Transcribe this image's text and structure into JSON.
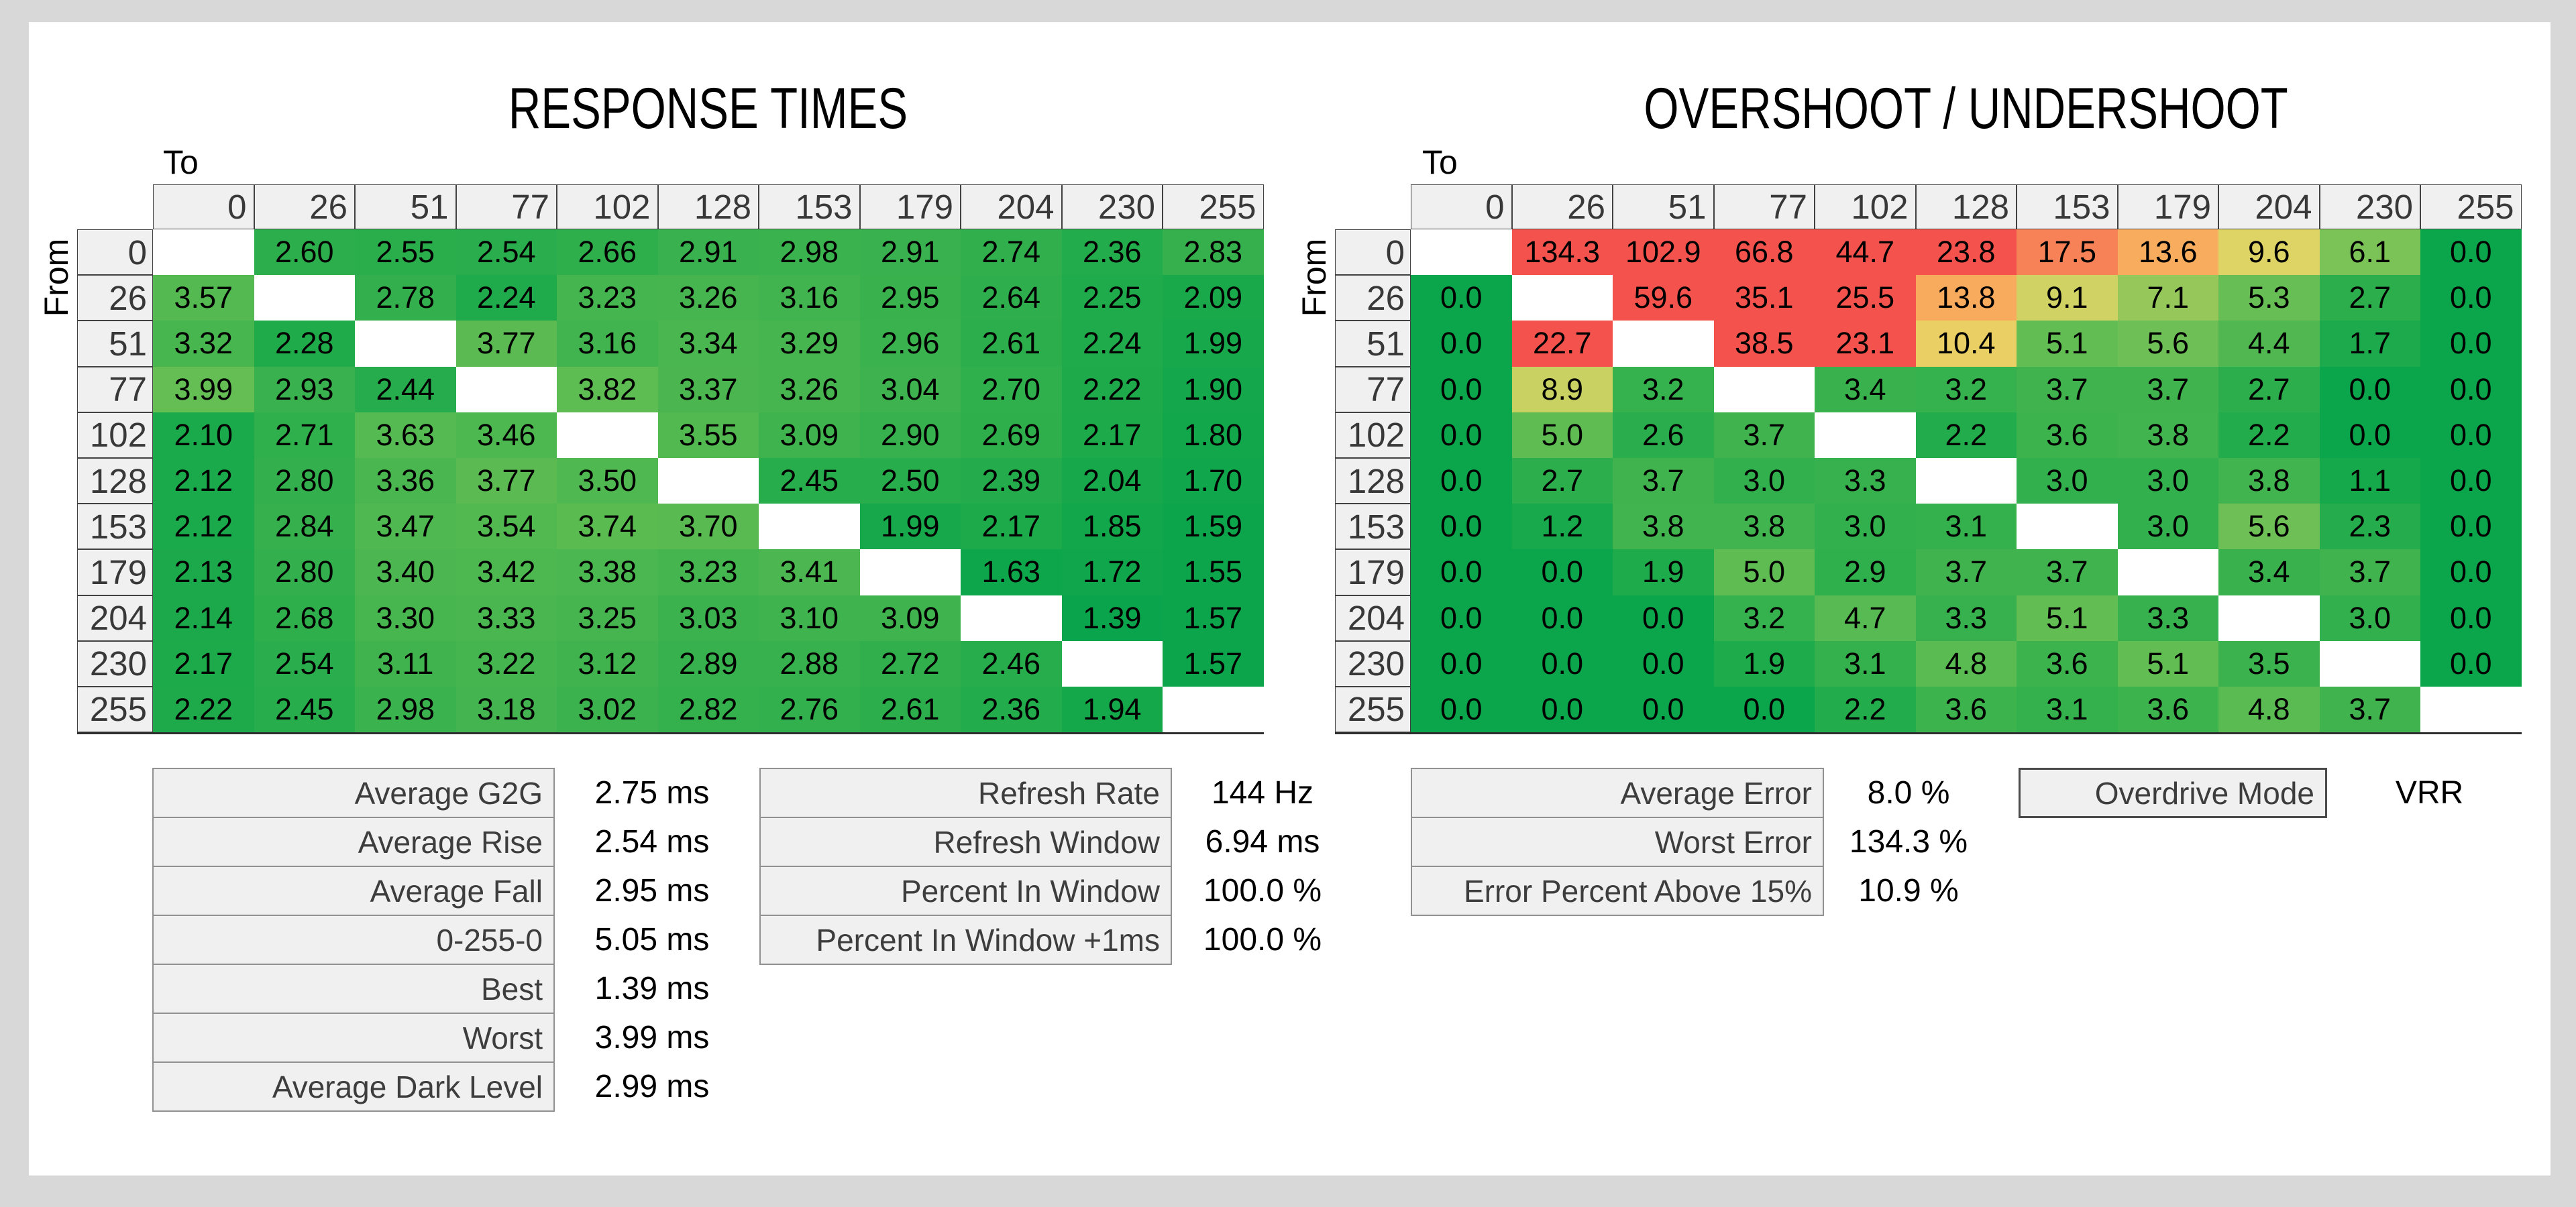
{
  "colors": {
    "page_bg": "#d8d8d8",
    "panel_bg": "#ffffff",
    "header_bg": "#f0f0f0",
    "header_border": "#414141",
    "header_text": "#383838",
    "grid_bottom_border": "#2e2e2e",
    "stat_label_bg": "#f0f0f0",
    "stat_label_border": "#919191",
    "stat_label_text": "#3d3d3d",
    "stat_value_text": "#000000",
    "overdrive_border": "#4a4a4a",
    "diagonal_blank": "#ffffff"
  },
  "chart_data": [
    {
      "type": "heatmap",
      "title": "RESPONSE TIMES",
      "xlabel": "To",
      "ylabel": "From",
      "x_categories": [
        "0",
        "26",
        "51",
        "77",
        "102",
        "128",
        "153",
        "179",
        "204",
        "230",
        "255"
      ],
      "y_categories": [
        "0",
        "26",
        "51",
        "77",
        "102",
        "128",
        "153",
        "179",
        "204",
        "230",
        "255"
      ],
      "unit": "ms",
      "decimals": 2,
      "color_stops": [
        [
          1.39,
          "#09A44B"
        ],
        [
          2.0,
          "#16A84B"
        ],
        [
          2.6,
          "#2CAE4C"
        ],
        [
          3.0,
          "#3BB24E"
        ],
        [
          3.5,
          "#50B850"
        ],
        [
          4.0,
          "#64BE53"
        ]
      ],
      "values": [
        [
          null,
          2.6,
          2.55,
          2.54,
          2.66,
          2.91,
          2.98,
          2.91,
          2.74,
          2.36,
          2.83
        ],
        [
          3.57,
          null,
          2.78,
          2.24,
          3.23,
          3.26,
          3.16,
          2.95,
          2.64,
          2.25,
          2.09
        ],
        [
          3.32,
          2.28,
          null,
          3.77,
          3.16,
          3.34,
          3.29,
          2.96,
          2.61,
          2.24,
          1.99
        ],
        [
          3.99,
          2.93,
          2.44,
          null,
          3.82,
          3.37,
          3.26,
          3.04,
          2.7,
          2.22,
          1.9
        ],
        [
          2.1,
          2.71,
          3.63,
          3.46,
          null,
          3.55,
          3.09,
          2.9,
          2.69,
          2.17,
          1.8
        ],
        [
          2.12,
          2.8,
          3.36,
          3.77,
          3.5,
          null,
          2.45,
          2.5,
          2.39,
          2.04,
          1.7
        ],
        [
          2.12,
          2.84,
          3.47,
          3.54,
          3.74,
          3.7,
          null,
          1.99,
          2.17,
          1.85,
          1.59
        ],
        [
          2.13,
          2.8,
          3.4,
          3.42,
          3.38,
          3.23,
          3.41,
          null,
          1.63,
          1.72,
          1.55
        ],
        [
          2.14,
          2.68,
          3.3,
          3.33,
          3.25,
          3.03,
          3.1,
          3.09,
          null,
          1.39,
          1.57
        ],
        [
          2.17,
          2.54,
          3.11,
          3.22,
          3.12,
          2.89,
          2.88,
          2.72,
          2.46,
          null,
          1.57
        ],
        [
          2.22,
          2.45,
          2.98,
          3.18,
          3.02,
          2.82,
          2.76,
          2.61,
          2.36,
          1.94,
          null
        ]
      ]
    },
    {
      "type": "heatmap",
      "title": "OVERSHOOT / UNDERSHOOT",
      "xlabel": "To",
      "ylabel": "From",
      "x_categories": [
        "0",
        "26",
        "51",
        "77",
        "102",
        "128",
        "153",
        "179",
        "204",
        "230",
        "255"
      ],
      "y_categories": [
        "0",
        "26",
        "51",
        "77",
        "102",
        "128",
        "153",
        "179",
        "204",
        "230",
        "255"
      ],
      "unit": "%",
      "decimals": 1,
      "color_stops": [
        [
          0.0,
          "#0BA64B"
        ],
        [
          2.0,
          "#1FAB4C"
        ],
        [
          3.5,
          "#3BB24E"
        ],
        [
          5.0,
          "#5FBC53"
        ],
        [
          6.5,
          "#85C458"
        ],
        [
          8.0,
          "#AECC5F"
        ],
        [
          9.5,
          "#DDD466"
        ],
        [
          11.0,
          "#F3CE63"
        ],
        [
          14.0,
          "#F9A85D"
        ],
        [
          18.0,
          "#F77C56"
        ],
        [
          22.0,
          "#F4524D"
        ]
      ],
      "values": [
        [
          null,
          134.3,
          102.9,
          66.8,
          44.7,
          23.8,
          17.5,
          13.6,
          9.6,
          6.1,
          0.0
        ],
        [
          0.0,
          null,
          59.6,
          35.1,
          25.5,
          13.8,
          9.1,
          7.1,
          5.3,
          2.7,
          0.0
        ],
        [
          0.0,
          22.7,
          null,
          38.5,
          23.1,
          10.4,
          5.1,
          5.6,
          4.4,
          1.7,
          0.0
        ],
        [
          0.0,
          8.9,
          3.2,
          null,
          3.4,
          3.2,
          3.7,
          3.7,
          2.7,
          0.0,
          0.0
        ],
        [
          0.0,
          5.0,
          2.6,
          3.7,
          null,
          2.2,
          3.6,
          3.8,
          2.2,
          0.0,
          0.0
        ],
        [
          0.0,
          2.7,
          3.7,
          3.0,
          3.3,
          null,
          3.0,
          3.0,
          3.8,
          1.1,
          0.0
        ],
        [
          0.0,
          1.2,
          3.8,
          3.8,
          3.0,
          3.1,
          null,
          3.0,
          5.6,
          2.3,
          0.0
        ],
        [
          0.0,
          0.0,
          1.9,
          5.0,
          2.9,
          3.7,
          3.7,
          null,
          3.4,
          3.7,
          0.0
        ],
        [
          0.0,
          0.0,
          0.0,
          3.2,
          4.7,
          3.3,
          5.1,
          3.3,
          null,
          3.0,
          0.0
        ],
        [
          0.0,
          0.0,
          0.0,
          1.9,
          3.1,
          4.8,
          3.6,
          5.1,
          3.5,
          null,
          0.0
        ],
        [
          0.0,
          0.0,
          0.0,
          0.0,
          2.2,
          3.6,
          3.1,
          3.6,
          4.8,
          3.7,
          null
        ]
      ]
    },
    {
      "type": "table",
      "name": "timing_summary",
      "rows": [
        [
          "Average G2G",
          "2.75",
          "ms"
        ],
        [
          "Average Rise",
          "2.54",
          "ms"
        ],
        [
          "Average Fall",
          "2.95",
          "ms"
        ],
        [
          "0-255-0",
          "5.05",
          "ms"
        ],
        [
          "Best",
          "1.39",
          "ms"
        ],
        [
          "Worst",
          "3.99",
          "ms"
        ],
        [
          "Average Dark Level",
          "2.99",
          "ms"
        ]
      ]
    },
    {
      "type": "table",
      "name": "refresh_summary",
      "rows": [
        [
          "Refresh Rate",
          "144",
          "Hz"
        ],
        [
          "Refresh Window",
          "6.94",
          "ms"
        ],
        [
          "Percent In Window",
          "100.0",
          "%"
        ],
        [
          "Percent In Window +1ms",
          "100.0",
          "%"
        ]
      ]
    },
    {
      "type": "table",
      "name": "error_summary",
      "rows": [
        [
          "Average Error",
          "8.0",
          "%"
        ],
        [
          "Worst Error",
          "134.3",
          "%"
        ],
        [
          "Error Percent Above 15%",
          "10.9",
          "%"
        ]
      ]
    },
    {
      "type": "table",
      "name": "overdrive",
      "rows": [
        [
          "Overdrive Mode",
          "VRR",
          ""
        ]
      ]
    }
  ]
}
